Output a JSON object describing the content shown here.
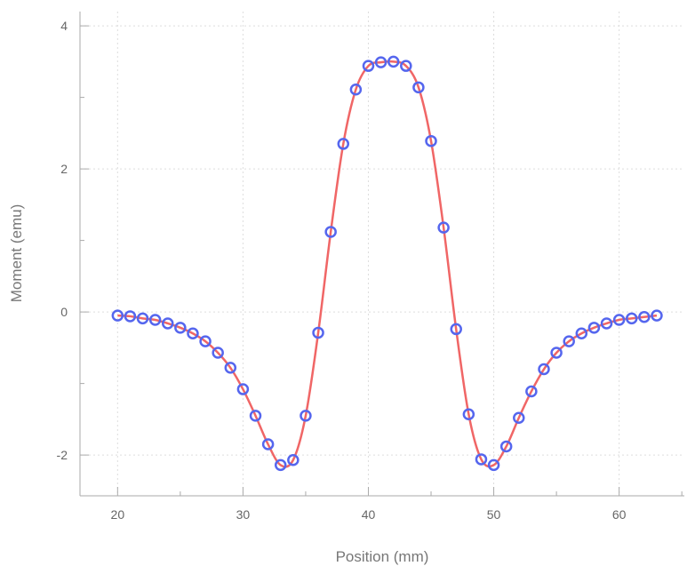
{
  "chart_data": {
    "type": "scatter",
    "xlabel": "Position (mm)",
    "ylabel": "Moment (emu)",
    "xlim": [
      17,
      65.2
    ],
    "ylim": [
      -2.57,
      4.2
    ],
    "xticks": [
      20,
      30,
      40,
      50,
      60
    ],
    "yticks": [
      -2,
      0,
      2,
      4
    ],
    "xtick_labels": [
      "20",
      "30",
      "40",
      "50",
      "60"
    ],
    "ytick_labels": [
      "-2",
      "0",
      "2",
      "4"
    ],
    "grid": true,
    "series": [
      {
        "kind": "markers",
        "marker": "open-circle",
        "color": "#5566ee",
        "x": [
          20,
          21,
          22,
          23,
          24,
          25,
          26,
          27,
          28,
          29,
          30,
          31,
          32,
          33,
          34,
          35,
          36,
          37,
          38,
          39,
          40,
          41,
          42,
          43,
          44,
          45,
          46,
          47,
          48,
          49,
          50,
          51,
          52,
          53,
          54,
          55,
          56,
          57,
          58,
          59,
          60,
          61,
          62,
          63
        ],
        "y": [
          -0.05,
          -0.06,
          -0.09,
          -0.11,
          -0.16,
          -0.22,
          -0.3,
          -0.41,
          -0.57,
          -0.78,
          -1.08,
          -1.45,
          -1.85,
          -2.14,
          -2.07,
          -1.45,
          -0.29,
          1.12,
          2.35,
          3.11,
          3.44,
          3.49,
          3.5,
          3.44,
          3.14,
          2.39,
          1.18,
          -0.24,
          -1.43,
          -2.06,
          -2.14,
          -1.88,
          -1.48,
          -1.11,
          -0.8,
          -0.57,
          -0.41,
          -0.3,
          -0.22,
          -0.16,
          -0.11,
          -0.09,
          -0.07,
          -0.05
        ]
      },
      {
        "kind": "fit-line",
        "color": "#f06666"
      }
    ]
  }
}
